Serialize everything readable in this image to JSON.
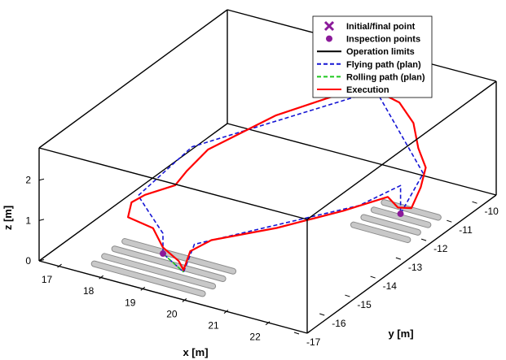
{
  "chart_data": {
    "type": "line3d",
    "title": "",
    "xlabel": "x [m]",
    "ylabel": "y [m]",
    "zlabel": "z [m]",
    "xlim": [
      16.5,
      22.8
    ],
    "ylim": [
      -17,
      -9.6
    ],
    "zlim": [
      0,
      2.8
    ],
    "x_ticks": [
      "17",
      "18",
      "19",
      "20",
      "21",
      "22"
    ],
    "y_ticks": [
      "-10",
      "-11",
      "-12",
      "-13",
      "-14",
      "-15",
      "-16",
      "-17"
    ],
    "z_ticks": [
      "0",
      "1",
      "2"
    ],
    "grid": false,
    "legend_position": "top-right",
    "legend": [
      {
        "label": "Initial/final point",
        "kind": "marker-x",
        "color": "#8b1a9a"
      },
      {
        "label": "Inspection points",
        "kind": "marker-dot",
        "color": "#8b1a9a"
      },
      {
        "label": "Operation limits",
        "kind": "line-solid",
        "color": "#000000"
      },
      {
        "label": "Flying path (plan)",
        "kind": "line-dashed",
        "color": "#1515d4"
      },
      {
        "label": "Rolling path (plan)",
        "kind": "line-dashed",
        "color": "#1ec81e"
      },
      {
        "label": "Execution",
        "kind": "line-solid",
        "color": "#ff0000"
      }
    ],
    "initial_final_point": {
      "x": 20.8,
      "y": -10.7,
      "z": 2.55
    },
    "inspection_points": [
      {
        "x": 18.8,
        "y": -15.8,
        "z": 0.3
      },
      {
        "x": 22.0,
        "y": -11.7,
        "z": 0.3
      }
    ],
    "pipes": [
      {
        "x": [
          17.7,
          20.3
        ],
        "y": [
          -15.5,
          -15.5
        ],
        "z": [
          0.15,
          0.15
        ]
      },
      {
        "x": [
          17.7,
          20.3
        ],
        "y": [
          -15.9,
          -15.9
        ],
        "z": [
          0.15,
          0.15
        ]
      },
      {
        "x": [
          17.7,
          20.3
        ],
        "y": [
          -16.3,
          -16.3
        ],
        "z": [
          0.15,
          0.15
        ]
      },
      {
        "x": [
          17.7,
          20.3
        ],
        "y": [
          -16.7,
          -16.7
        ],
        "z": [
          0.15,
          0.15
        ]
      },
      {
        "x": [
          21.3,
          22.6
        ],
        "y": [
          -11.2,
          -11.2
        ],
        "z": [
          0.15,
          0.15
        ]
      },
      {
        "x": [
          21.3,
          22.6
        ],
        "y": [
          -11.6,
          -11.6
        ],
        "z": [
          0.15,
          0.15
        ]
      },
      {
        "x": [
          21.3,
          22.6
        ],
        "y": [
          -12.0,
          -12.0
        ],
        "z": [
          0.15,
          0.15
        ]
      },
      {
        "x": [
          21.3,
          22.6
        ],
        "y": [
          -12.4,
          -12.4
        ],
        "z": [
          0.15,
          0.15
        ]
      }
    ],
    "series": [
      {
        "name": "Flying path (plan)",
        "style": "dashed",
        "color": "#1515d4",
        "points": [
          {
            "x": 20.8,
            "y": -10.7,
            "z": 2.55
          },
          {
            "x": 18.4,
            "y": -14.0,
            "z": 2.0
          },
          {
            "x": 17.9,
            "y": -15.3,
            "z": 1.25
          },
          {
            "x": 18.2,
            "y": -15.4,
            "z": 1.0
          },
          {
            "x": 18.8,
            "y": -15.8,
            "z": 0.8
          },
          {
            "x": 18.8,
            "y": -15.8,
            "z": 0.3
          },
          {
            "x": 19.6,
            "y": -16.3,
            "z": 0.3
          },
          {
            "x": 19.8,
            "y": -16.2,
            "z": 1.0
          },
          {
            "x": 21.8,
            "y": -13.0,
            "z": 1.05
          },
          {
            "x": 22.0,
            "y": -11.7,
            "z": 1.0
          },
          {
            "x": 22.0,
            "y": -11.7,
            "z": 0.3
          },
          {
            "x": 22.3,
            "y": -11.3,
            "z": 1.2
          },
          {
            "x": 20.8,
            "y": -10.7,
            "z": 2.55
          }
        ]
      },
      {
        "name": "Rolling path (plan)",
        "style": "dashed",
        "color": "#1ec81e",
        "points": [
          {
            "x": 18.8,
            "y": -15.8,
            "z": 0.3
          },
          {
            "x": 19.6,
            "y": -16.3,
            "z": 0.3
          }
        ]
      },
      {
        "name": "Execution",
        "style": "solid",
        "color": "#ff0000",
        "points": [
          {
            "x": 20.8,
            "y": -10.7,
            "z": 2.55
          },
          {
            "x": 20.3,
            "y": -11.3,
            "z": 2.6
          },
          {
            "x": 19.5,
            "y": -12.5,
            "z": 2.4
          },
          {
            "x": 18.6,
            "y": -13.7,
            "z": 1.85
          },
          {
            "x": 18.4,
            "y": -14.2,
            "z": 1.5
          },
          {
            "x": 18.3,
            "y": -14.5,
            "z": 1.25
          },
          {
            "x": 18.0,
            "y": -15.2,
            "z": 1.25
          },
          {
            "x": 17.8,
            "y": -15.4,
            "z": 1.1
          },
          {
            "x": 17.9,
            "y": -15.7,
            "z": 0.9
          },
          {
            "x": 18.5,
            "y": -15.7,
            "z": 0.8
          },
          {
            "x": 18.8,
            "y": -15.8,
            "z": 0.45
          },
          {
            "x": 19.3,
            "y": -16.0,
            "z": 0.35
          },
          {
            "x": 19.6,
            "y": -16.3,
            "z": 0.35
          },
          {
            "x": 19.7,
            "y": -16.2,
            "z": 0.8
          },
          {
            "x": 19.9,
            "y": -15.7,
            "z": 0.9
          },
          {
            "x": 20.8,
            "y": -14.6,
            "z": 0.95
          },
          {
            "x": 21.6,
            "y": -13.3,
            "z": 1.0
          },
          {
            "x": 22.0,
            "y": -12.2,
            "z": 0.95
          },
          {
            "x": 22.0,
            "y": -11.8,
            "z": 0.5
          },
          {
            "x": 22.2,
            "y": -11.6,
            "z": 0.45
          },
          {
            "x": 22.3,
            "y": -11.4,
            "z": 0.9
          },
          {
            "x": 22.3,
            "y": -11.2,
            "z": 1.3
          },
          {
            "x": 22.0,
            "y": -11.0,
            "z": 1.6
          },
          {
            "x": 21.7,
            "y": -10.7,
            "z": 2.0
          },
          {
            "x": 21.3,
            "y": -10.6,
            "z": 2.35
          },
          {
            "x": 20.8,
            "y": -10.7,
            "z": 2.55
          }
        ]
      }
    ]
  },
  "colors": {
    "box": "#000000",
    "pipe": "#c8c8c8",
    "pipe_edge": "#8c8c8c",
    "marker": "#8b1a9a"
  }
}
